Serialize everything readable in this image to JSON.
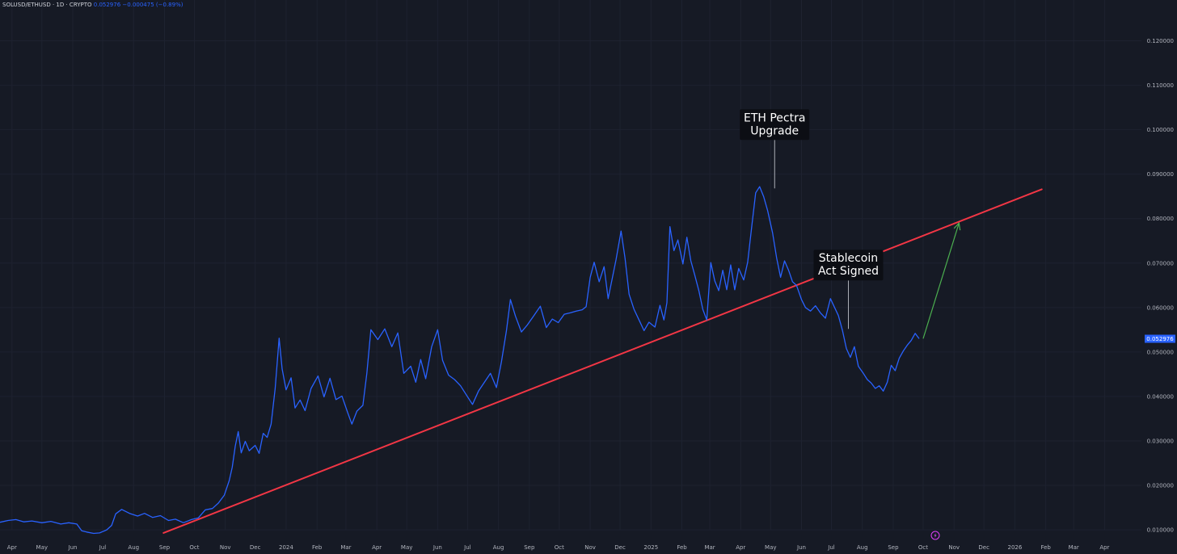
{
  "header": {
    "symbol": "SOLUSD/ETHUSD · 1D · CRYPTO",
    "price": "0.052976",
    "change": "−0.000475 (−0.89%)"
  },
  "colors": {
    "background": "#161a25",
    "grid": "#1e2230",
    "series_line": "#2962ff",
    "trendline": "#f23645",
    "projection_arrow": "#4caf50",
    "tick_text": "#b2b5be",
    "price_tag_bg": "#2962ff",
    "annotation_bg": "#0c0e14"
  },
  "chart_data": {
    "type": "line",
    "title": "",
    "xlabel": "",
    "ylabel": "",
    "ylim": [
      0.005,
      0.124
    ],
    "xlim": [
      "2023-03-20",
      "2026-04-25"
    ],
    "grid": true,
    "log_scale": false,
    "y_ticks": [
      "0.010000",
      "0.020000",
      "0.030000",
      "0.040000",
      "0.050000",
      "0.060000",
      "0.070000",
      "0.080000",
      "0.090000",
      "0.100000",
      "0.110000",
      "0.120000"
    ],
    "x_ticks": [
      {
        "label": "Apr",
        "date": "2023-04-01"
      },
      {
        "label": "May",
        "date": "2023-05-01"
      },
      {
        "label": "Jun",
        "date": "2023-06-01"
      },
      {
        "label": "Jul",
        "date": "2023-07-01"
      },
      {
        "label": "Aug",
        "date": "2023-08-01"
      },
      {
        "label": "Sep",
        "date": "2023-09-01"
      },
      {
        "label": "Oct",
        "date": "2023-10-01"
      },
      {
        "label": "Nov",
        "date": "2023-11-01"
      },
      {
        "label": "Dec",
        "date": "2023-12-01"
      },
      {
        "label": "2024",
        "date": "2024-01-01"
      },
      {
        "label": "Feb",
        "date": "2024-02-01"
      },
      {
        "label": "Mar",
        "date": "2024-03-01"
      },
      {
        "label": "Apr",
        "date": "2024-04-01"
      },
      {
        "label": "May",
        "date": "2024-05-01"
      },
      {
        "label": "Jun",
        "date": "2024-06-01"
      },
      {
        "label": "Jul",
        "date": "2024-07-01"
      },
      {
        "label": "Aug",
        "date": "2024-08-01"
      },
      {
        "label": "Sep",
        "date": "2024-09-01"
      },
      {
        "label": "Oct",
        "date": "2024-10-01"
      },
      {
        "label": "Nov",
        "date": "2024-11-01"
      },
      {
        "label": "Dec",
        "date": "2024-12-01"
      },
      {
        "label": "2025",
        "date": "2025-01-01"
      },
      {
        "label": "Feb",
        "date": "2025-02-01"
      },
      {
        "label": "Mar",
        "date": "2025-03-01"
      },
      {
        "label": "Apr",
        "date": "2025-04-01"
      },
      {
        "label": "May",
        "date": "2025-05-01"
      },
      {
        "label": "Jun",
        "date": "2025-06-01"
      },
      {
        "label": "Jul",
        "date": "2025-07-01"
      },
      {
        "label": "Aug",
        "date": "2025-08-01"
      },
      {
        "label": "Sep",
        "date": "2025-09-01"
      },
      {
        "label": "Oct",
        "date": "2025-10-01"
      },
      {
        "label": "Nov",
        "date": "2025-11-01"
      },
      {
        "label": "Dec",
        "date": "2025-12-01"
      },
      {
        "label": "2026",
        "date": "2026-01-01"
      },
      {
        "label": "Feb",
        "date": "2026-02-01"
      },
      {
        "label": "Mar",
        "date": "2026-03-01"
      },
      {
        "label": "Apr",
        "date": "2026-04-01"
      }
    ],
    "series": [
      {
        "name": "SOLUSD/ETHUSD",
        "points": [
          [
            "2023-03-20",
            0.0117
          ],
          [
            "2023-03-28",
            0.0121
          ],
          [
            "2023-04-05",
            0.0123
          ],
          [
            "2023-04-13",
            0.0118
          ],
          [
            "2023-04-21",
            0.012
          ],
          [
            "2023-05-01",
            0.0116
          ],
          [
            "2023-05-10",
            0.0119
          ],
          [
            "2023-05-20",
            0.0113
          ],
          [
            "2023-05-28",
            0.0116
          ],
          [
            "2023-06-05",
            0.0113
          ],
          [
            "2023-06-10",
            0.0098
          ],
          [
            "2023-06-15",
            0.0095
          ],
          [
            "2023-06-22",
            0.0092
          ],
          [
            "2023-06-28",
            0.0093
          ],
          [
            "2023-07-05",
            0.01
          ],
          [
            "2023-07-10",
            0.011
          ],
          [
            "2023-07-14",
            0.0136
          ],
          [
            "2023-07-20",
            0.0146
          ],
          [
            "2023-07-28",
            0.0137
          ],
          [
            "2023-08-05",
            0.0131
          ],
          [
            "2023-08-12",
            0.0137
          ],
          [
            "2023-08-20",
            0.0128
          ],
          [
            "2023-08-28",
            0.0132
          ],
          [
            "2023-09-05",
            0.0121
          ],
          [
            "2023-09-12",
            0.0124
          ],
          [
            "2023-09-20",
            0.0116
          ],
          [
            "2023-09-28",
            0.0123
          ],
          [
            "2023-10-05",
            0.0127
          ],
          [
            "2023-10-12",
            0.0145
          ],
          [
            "2023-10-19",
            0.0148
          ],
          [
            "2023-10-25",
            0.016
          ],
          [
            "2023-10-31",
            0.0178
          ],
          [
            "2023-11-05",
            0.0211
          ],
          [
            "2023-11-08",
            0.0241
          ],
          [
            "2023-11-11",
            0.0288
          ],
          [
            "2023-11-14",
            0.0321
          ],
          [
            "2023-11-17",
            0.0273
          ],
          [
            "2023-11-21",
            0.0299
          ],
          [
            "2023-11-25",
            0.0278
          ],
          [
            "2023-12-01",
            0.029
          ],
          [
            "2023-12-05",
            0.0272
          ],
          [
            "2023-12-09",
            0.0317
          ],
          [
            "2023-12-13",
            0.0308
          ],
          [
            "2023-12-17",
            0.0338
          ],
          [
            "2023-12-21",
            0.0418
          ],
          [
            "2023-12-25",
            0.0531
          ],
          [
            "2023-12-28",
            0.0462
          ],
          [
            "2024-01-01",
            0.0415
          ],
          [
            "2024-01-06",
            0.0442
          ],
          [
            "2024-01-10",
            0.0374
          ],
          [
            "2024-01-15",
            0.0392
          ],
          [
            "2024-01-20",
            0.0368
          ],
          [
            "2024-01-26",
            0.0418
          ],
          [
            "2024-02-02",
            0.0446
          ],
          [
            "2024-02-08",
            0.0399
          ],
          [
            "2024-02-14",
            0.0441
          ],
          [
            "2024-02-20",
            0.0393
          ],
          [
            "2024-02-26",
            0.0401
          ],
          [
            "2024-03-03",
            0.0362
          ],
          [
            "2024-03-07",
            0.0338
          ],
          [
            "2024-03-12",
            0.0367
          ],
          [
            "2024-03-18",
            0.038
          ],
          [
            "2024-03-22",
            0.0452
          ],
          [
            "2024-03-26",
            0.055
          ],
          [
            "2024-04-02",
            0.0528
          ],
          [
            "2024-04-09",
            0.0552
          ],
          [
            "2024-04-16",
            0.0512
          ],
          [
            "2024-04-22",
            0.0543
          ],
          [
            "2024-04-28",
            0.0452
          ],
          [
            "2024-05-05",
            0.0468
          ],
          [
            "2024-05-10",
            0.0432
          ],
          [
            "2024-05-15",
            0.0483
          ],
          [
            "2024-05-20",
            0.044
          ],
          [
            "2024-05-26",
            0.0512
          ],
          [
            "2024-06-01",
            0.055
          ],
          [
            "2024-06-06",
            0.0481
          ],
          [
            "2024-06-12",
            0.0448
          ],
          [
            "2024-06-18",
            0.0438
          ],
          [
            "2024-06-24",
            0.0424
          ],
          [
            "2024-06-30",
            0.0403
          ],
          [
            "2024-07-06",
            0.0382
          ],
          [
            "2024-07-12",
            0.0412
          ],
          [
            "2024-07-18",
            0.0432
          ],
          [
            "2024-07-24",
            0.0452
          ],
          [
            "2024-07-30",
            0.042
          ],
          [
            "2024-08-04",
            0.0478
          ],
          [
            "2024-08-09",
            0.0548
          ],
          [
            "2024-08-13",
            0.0618
          ],
          [
            "2024-08-18",
            0.0581
          ],
          [
            "2024-08-24",
            0.0545
          ],
          [
            "2024-08-30",
            0.0561
          ],
          [
            "2024-09-05",
            0.058
          ],
          [
            "2024-09-12",
            0.0603
          ],
          [
            "2024-09-18",
            0.0555
          ],
          [
            "2024-09-24",
            0.0574
          ],
          [
            "2024-09-30",
            0.0566
          ],
          [
            "2024-10-06",
            0.0585
          ],
          [
            "2024-10-12",
            0.0588
          ],
          [
            "2024-10-18",
            0.0592
          ],
          [
            "2024-10-24",
            0.0595
          ],
          [
            "2024-10-28",
            0.0602
          ],
          [
            "2024-11-01",
            0.0668
          ],
          [
            "2024-11-05",
            0.0702
          ],
          [
            "2024-11-10",
            0.0658
          ],
          [
            "2024-11-15",
            0.0692
          ],
          [
            "2024-11-19",
            0.062
          ],
          [
            "2024-11-23",
            0.0664
          ],
          [
            "2024-11-27",
            0.0708
          ],
          [
            "2024-12-02",
            0.0772
          ],
          [
            "2024-12-06",
            0.0711
          ],
          [
            "2024-12-10",
            0.063
          ],
          [
            "2024-12-15",
            0.0596
          ],
          [
            "2024-12-20",
            0.0572
          ],
          [
            "2024-12-25",
            0.0548
          ],
          [
            "2024-12-30",
            0.0567
          ],
          [
            "2025-01-05",
            0.0556
          ],
          [
            "2025-01-10",
            0.0605
          ],
          [
            "2025-01-14",
            0.0572
          ],
          [
            "2025-01-17",
            0.0611
          ],
          [
            "2025-01-20",
            0.0782
          ],
          [
            "2025-01-24",
            0.0728
          ],
          [
            "2025-01-28",
            0.0752
          ],
          [
            "2025-02-02",
            0.0698
          ],
          [
            "2025-02-06",
            0.0758
          ],
          [
            "2025-02-10",
            0.0705
          ],
          [
            "2025-02-14",
            0.0672
          ],
          [
            "2025-02-18",
            0.0638
          ],
          [
            "2025-02-22",
            0.0596
          ],
          [
            "2025-02-26",
            0.0572
          ],
          [
            "2025-03-02",
            0.0701
          ],
          [
            "2025-03-06",
            0.066
          ],
          [
            "2025-03-10",
            0.0638
          ],
          [
            "2025-03-14",
            0.0684
          ],
          [
            "2025-03-18",
            0.064
          ],
          [
            "2025-03-22",
            0.0696
          ],
          [
            "2025-03-26",
            0.064
          ],
          [
            "2025-03-30",
            0.0688
          ],
          [
            "2025-04-04",
            0.0662
          ],
          [
            "2025-04-08",
            0.0702
          ],
          [
            "2025-04-12",
            0.078
          ],
          [
            "2025-04-16",
            0.0858
          ],
          [
            "2025-04-20",
            0.0872
          ],
          [
            "2025-04-24",
            0.085
          ],
          [
            "2025-04-28",
            0.0818
          ],
          [
            "2025-05-03",
            0.0768
          ],
          [
            "2025-05-07",
            0.0712
          ],
          [
            "2025-05-11",
            0.0668
          ],
          [
            "2025-05-15",
            0.0705
          ],
          [
            "2025-05-19",
            0.0684
          ],
          [
            "2025-05-23",
            0.0658
          ],
          [
            "2025-05-27",
            0.065
          ],
          [
            "2025-06-01",
            0.0618
          ],
          [
            "2025-06-05",
            0.06
          ],
          [
            "2025-06-10",
            0.0592
          ],
          [
            "2025-06-15",
            0.0604
          ],
          [
            "2025-06-20",
            0.0588
          ],
          [
            "2025-06-25",
            0.0576
          ],
          [
            "2025-06-30",
            0.062
          ],
          [
            "2025-07-04",
            0.0601
          ],
          [
            "2025-07-08",
            0.0582
          ],
          [
            "2025-07-12",
            0.0549
          ],
          [
            "2025-07-16",
            0.0508
          ],
          [
            "2025-07-20",
            0.0488
          ],
          [
            "2025-07-24",
            0.0512
          ],
          [
            "2025-07-28",
            0.0468
          ],
          [
            "2025-08-02",
            0.0452
          ],
          [
            "2025-08-06",
            0.0438
          ],
          [
            "2025-08-10",
            0.043
          ],
          [
            "2025-08-14",
            0.0418
          ],
          [
            "2025-08-18",
            0.0424
          ],
          [
            "2025-08-22",
            0.0412
          ],
          [
            "2025-08-26",
            0.0432
          ],
          [
            "2025-08-30",
            0.047
          ],
          [
            "2025-09-03",
            0.0458
          ],
          [
            "2025-09-07",
            0.0486
          ],
          [
            "2025-09-11",
            0.0502
          ],
          [
            "2025-09-15",
            0.0515
          ],
          [
            "2025-09-19",
            0.0526
          ],
          [
            "2025-09-23",
            0.0542
          ],
          [
            "2025-09-27",
            0.053
          ]
        ]
      }
    ],
    "trendline": {
      "from": [
        "2023-08-31",
        0.0093
      ],
      "to": [
        "2026-01-28",
        0.0866
      ]
    },
    "projection_arrow": {
      "from": [
        "2025-10-01",
        0.053
      ],
      "to": [
        "2025-11-06",
        0.079
      ]
    },
    "annotations": [
      {
        "lines": [
          "ETH Pectra",
          "Upgrade"
        ],
        "date": "2025-05-05",
        "value": 0.0868
      },
      {
        "lines": [
          "Stablecoin",
          "Act Signed"
        ],
        "date": "2025-07-18",
        "value": 0.0552
      }
    ],
    "last_price_label": "0.052976",
    "last_price_value": 0.052976
  }
}
